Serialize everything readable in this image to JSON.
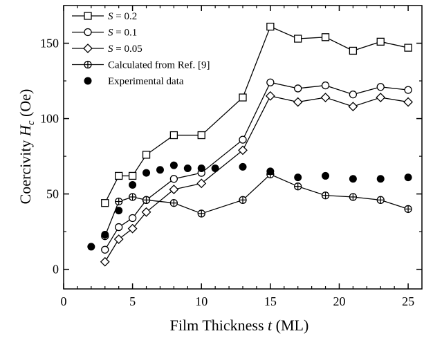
{
  "chart_data": {
    "type": "line",
    "xlabel": {
      "prefix": "Film Thickness ",
      "variable": "t",
      "suffix": " (ML)"
    },
    "ylabel": {
      "prefix": "Coercivity ",
      "variable": "H",
      "subscript": "c",
      "suffix": " (Oe)"
    },
    "xlim": [
      0,
      26
    ],
    "ylim": [
      -13,
      175
    ],
    "xticks": [
      0,
      5,
      10,
      15,
      20,
      25
    ],
    "yticks": [
      0,
      50,
      100,
      150
    ],
    "legend_position": "top-left",
    "series": [
      {
        "key": "s02",
        "legend": {
          "italic": "S",
          "rest": " = 0.2"
        },
        "marker": "square",
        "line": true,
        "x": [
          3,
          4,
          5,
          6,
          8,
          10,
          13,
          15,
          17,
          19,
          21,
          23,
          25
        ],
        "y": [
          44,
          62,
          62,
          76,
          89,
          89,
          114,
          161,
          153,
          154,
          145,
          151,
          147
        ]
      },
      {
        "key": "s01",
        "legend": {
          "italic": "S",
          "rest": " = 0.1"
        },
        "marker": "circle-open",
        "line": true,
        "x": [
          3,
          4,
          5,
          6,
          8,
          10,
          13,
          15,
          17,
          19,
          21,
          23,
          25
        ],
        "y": [
          13,
          28,
          34,
          46,
          60,
          64,
          86,
          124,
          120,
          122,
          116,
          121,
          119
        ]
      },
      {
        "key": "s005",
        "legend": {
          "italic": "S",
          "rest": " = 0.05"
        },
        "marker": "diamond",
        "line": true,
        "x": [
          3,
          4,
          5,
          6,
          8,
          10,
          13,
          15,
          17,
          19,
          21,
          23,
          25
        ],
        "y": [
          5,
          20,
          27,
          38,
          53,
          57,
          79,
          115,
          111,
          114,
          108,
          114,
          111
        ]
      },
      {
        "key": "calc",
        "legend": {
          "italic": "",
          "rest": "Calculated from Ref. [9]"
        },
        "marker": "circle-cross",
        "line": true,
        "x": [
          3,
          4,
          5,
          6,
          8,
          10,
          13,
          15,
          17,
          19,
          21,
          23,
          25
        ],
        "y": [
          22,
          45,
          48,
          46,
          44,
          37,
          46,
          63,
          55,
          49,
          48,
          46,
          40
        ]
      },
      {
        "key": "exp",
        "legend": {
          "italic": "",
          "rest": "Experimental data"
        },
        "marker": "circle-filled",
        "line": false,
        "x": [
          2,
          3,
          4,
          5,
          6,
          7,
          8,
          9,
          10,
          11,
          13,
          15,
          17,
          19,
          21,
          23,
          25
        ],
        "y": [
          15,
          23,
          39,
          56,
          64,
          66,
          69,
          67,
          67,
          67,
          68,
          65,
          61,
          62,
          60,
          60,
          61
        ]
      }
    ]
  }
}
